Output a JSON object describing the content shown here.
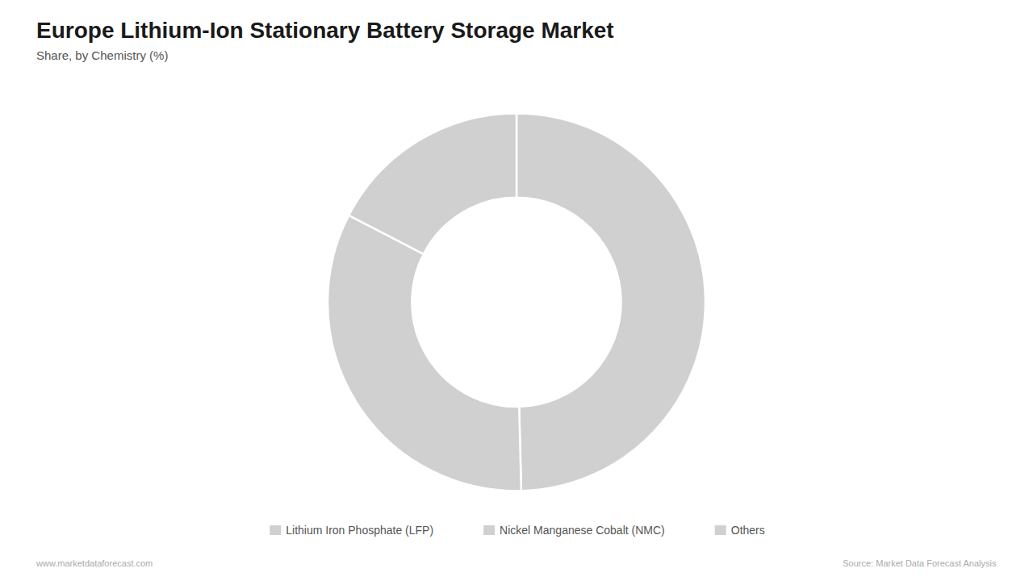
{
  "chart_data": {
    "type": "pie",
    "title": "Europe Lithium-Ion Stationary Battery Storage Market",
    "subtitle": "Share, by Chemistry (%)",
    "categories": [
      "Lithium Iron Phosphate (LFP)",
      "Nickel Manganese Cobalt (NMC)",
      "Others"
    ],
    "values": [
      49.6,
      33.0,
      17.4
    ],
    "color": "#d0d0d0",
    "legend": "bottom",
    "annotations": [
      "www.marketdataforecast.com",
      "Source: Market Data Forecast Analysis"
    ]
  }
}
